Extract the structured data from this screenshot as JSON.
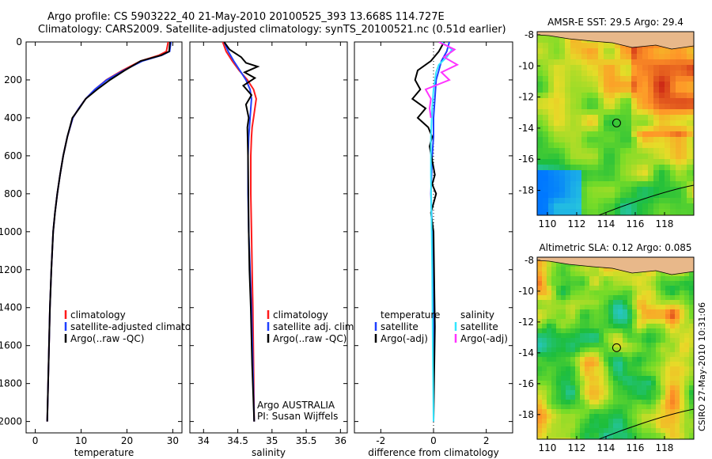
{
  "title": {
    "line1": "Argo profile: CS 5903222_40 21-May-2010 20100525_393 13.668S 114.727E",
    "line2": "Climatology: CARS2009. Satellite-adjusted climatology: synTS_20100521.nc (0.51d earlier)"
  },
  "stamp": "CSIRO 27-May-2010 10:31:06",
  "colors": {
    "climatology": "#ff1a1a",
    "satellite": "#1f3fff",
    "argo": "#000000",
    "argo_adj": "#ff33ff",
    "sat_salinity": "#33e6ff"
  },
  "chart_data": [
    {
      "type": "line",
      "id": "temperature",
      "xlabel": "temperature",
      "xlim": [
        -2,
        32
      ],
      "ylim": [
        2060,
        0
      ],
      "xticks": [
        0,
        10,
        20,
        30
      ],
      "yticks": [
        0,
        200,
        400,
        600,
        800,
        1000,
        1200,
        1400,
        1600,
        1800,
        2000
      ],
      "ylabels_shown": true,
      "legend": {
        "labels": [
          "climatology",
          "satellite-adjusted climatology",
          "Argo(..raw -QC)"
        ],
        "colors": [
          "#ff1a1a",
          "#1f3fff",
          "#000000"
        ]
      },
      "series": [
        {
          "name": "climatology",
          "color": "#ff1a1a",
          "x": [
            29.0,
            28.6,
            27.0,
            23.0,
            19.0,
            15.5,
            13.0,
            11.0,
            9.5,
            8.2,
            7.0,
            6.1,
            5.4,
            4.8,
            4.3,
            3.9,
            3.5,
            3.2,
            2.9,
            2.6
          ],
          "y": [
            0,
            50,
            70,
            100,
            150,
            200,
            250,
            300,
            350,
            400,
            500,
            600,
            700,
            800,
            900,
            1000,
            1200,
            1400,
            1700,
            2000
          ]
        },
        {
          "name": "satellite",
          "color": "#1f3fff",
          "x": [
            29.6,
            29.3,
            27.6,
            23.4,
            19.3,
            15.6,
            13.0,
            11.0,
            9.5,
            8.2,
            7.0,
            6.1,
            5.4,
            4.8,
            4.3,
            3.9,
            3.5,
            3.2,
            2.9,
            2.6
          ],
          "y": [
            0,
            50,
            70,
            100,
            150,
            200,
            250,
            300,
            350,
            400,
            500,
            600,
            700,
            800,
            900,
            1000,
            1200,
            1400,
            1700,
            2000
          ]
        },
        {
          "name": "Argo",
          "color": "#000000",
          "x": [
            29.4,
            29.2,
            27.5,
            23.0,
            19.5,
            16.3,
            13.5,
            11.0,
            9.6,
            8.1,
            7.0,
            6.1,
            5.4,
            4.8,
            4.3,
            3.9,
            3.5,
            3.2,
            2.9,
            2.6
          ],
          "y": [
            0,
            50,
            70,
            100,
            150,
            200,
            250,
            300,
            350,
            400,
            500,
            600,
            700,
            800,
            900,
            1000,
            1200,
            1400,
            1700,
            2000
          ]
        }
      ]
    },
    {
      "type": "line",
      "id": "salinity",
      "xlabel": "salinity",
      "xlim": [
        33.8,
        36.1
      ],
      "ylim": [
        2060,
        0
      ],
      "xticks": [
        34,
        34.5,
        35,
        35.5,
        36
      ],
      "yticks": [
        0,
        200,
        400,
        600,
        800,
        1000,
        1200,
        1400,
        1600,
        1800,
        2000
      ],
      "ylabels_shown": false,
      "legend": {
        "labels": [
          "climatology",
          "satellite adj. clim.",
          "Argo(..raw -QC)"
        ],
        "colors": [
          "#ff1a1a",
          "#1f3fff",
          "#000000"
        ]
      },
      "annotation": [
        "Argo AUSTRALIA",
        "PI: Susan Wijffels"
      ],
      "series": [
        {
          "name": "climatology",
          "color": "#ff1a1a",
          "x": [
            34.28,
            34.33,
            34.42,
            34.52,
            34.64,
            34.73,
            34.77,
            34.75,
            34.73,
            34.71,
            34.7,
            34.69,
            34.69,
            34.7,
            34.71,
            34.72,
            34.73,
            34.74
          ],
          "y": [
            0,
            50,
            100,
            150,
            200,
            250,
            300,
            350,
            400,
            450,
            500,
            600,
            800,
            1000,
            1200,
            1400,
            1700,
            2000
          ]
        },
        {
          "name": "satellite",
          "color": "#1f3fff",
          "x": [
            34.3,
            34.36,
            34.44,
            34.53,
            34.62,
            34.68,
            34.7,
            34.69,
            34.68,
            34.67,
            34.66,
            34.65,
            34.65,
            34.66,
            34.68,
            34.7,
            34.72,
            34.74
          ],
          "y": [
            0,
            50,
            100,
            150,
            200,
            250,
            300,
            350,
            400,
            450,
            500,
            600,
            800,
            1000,
            1200,
            1400,
            1700,
            2000
          ]
        },
        {
          "name": "Argo",
          "color": "#000000",
          "x": [
            34.3,
            34.38,
            34.55,
            34.62,
            34.79,
            34.6,
            34.75,
            34.58,
            34.7,
            34.62,
            34.66,
            34.64,
            34.65,
            34.66,
            34.67,
            34.69,
            34.71,
            34.74
          ],
          "y": [
            0,
            40,
            80,
            110,
            130,
            160,
            190,
            230,
            280,
            330,
            400,
            450,
            600,
            1000,
            1200,
            1400,
            1700,
            2000
          ]
        }
      ]
    },
    {
      "type": "line",
      "id": "difference",
      "xlabel": "difference from climatology",
      "xlim": [
        -3.0,
        3.0
      ],
      "ylim": [
        2060,
        0
      ],
      "xticks": [
        -2,
        0,
        2
      ],
      "yticks": [
        0,
        200,
        400,
        600,
        800,
        1000,
        1200,
        1400,
        1600,
        1800,
        2000
      ],
      "ylabels_shown": false,
      "zero_line": true,
      "legend_left": {
        "header": "temperature",
        "labels": [
          "satellite",
          "Argo(-adj)"
        ],
        "colors": [
          "#1f3fff",
          "#000000"
        ]
      },
      "legend_right": {
        "header": "salinity",
        "labels": [
          "satellite",
          "Argo(-adj)"
        ],
        "colors": [
          "#33e6ff",
          "#ff33ff"
        ]
      },
      "series": [
        {
          "name": "temperature satellite",
          "color": "#1f3fff",
          "x": [
            0.6,
            0.5,
            0.3,
            0.2,
            0.1,
            0.05,
            0.0,
            0.0,
            -0.05,
            -0.1,
            -0.05,
            0.0,
            0.0
          ],
          "y": [
            0,
            50,
            100,
            150,
            200,
            300,
            400,
            500,
            600,
            800,
            1000,
            1500,
            2000
          ]
        },
        {
          "name": "temperature Argo",
          "color": "#000000",
          "x": [
            0.4,
            0.2,
            -0.1,
            -0.6,
            -0.7,
            -0.5,
            -0.8,
            -0.3,
            -0.6,
            -0.2,
            -0.05,
            -0.15,
            0.05,
            -0.05,
            0.1,
            -0.1,
            0.0,
            0.05,
            0.0
          ],
          "y": [
            0,
            50,
            100,
            150,
            200,
            250,
            300,
            350,
            400,
            450,
            500,
            550,
            700,
            750,
            800,
            900,
            1000,
            1500,
            2000
          ]
        },
        {
          "name": "salinity satellite",
          "color": "#33e6ff",
          "x": [
            0.3,
            0.7,
            0.5,
            0.2,
            0.1,
            0.0,
            -0.05,
            -0.1,
            -0.1,
            -0.08,
            -0.05,
            -0.03,
            0.0
          ],
          "y": [
            0,
            40,
            80,
            120,
            160,
            250,
            350,
            500,
            700,
            900,
            1200,
            1600,
            2000
          ]
        },
        {
          "name": "salinity Argo",
          "color": "#ff33ff",
          "x": [
            0.2,
            0.8,
            0.4,
            0.9,
            0.3,
            0.6,
            -0.3,
            -0.1,
            -0.15,
            -0.1
          ],
          "y": [
            0,
            40,
            80,
            120,
            160,
            200,
            250,
            300,
            350,
            400
          ]
        }
      ]
    },
    {
      "type": "heatmap",
      "id": "sst-map",
      "title": "AMSR-E SST: 29.5  Argo: 29.4",
      "xlim": [
        109.3,
        120.0
      ],
      "ylim": [
        -19.6,
        -7.8
      ],
      "xticks": [
        110,
        112,
        114,
        116,
        118
      ],
      "yticks": [
        -8,
        -10,
        -12,
        -14,
        -16,
        -18
      ],
      "marker": {
        "lon": 114.727,
        "lat": -13.668
      }
    },
    {
      "type": "heatmap",
      "id": "sla-map",
      "title": "Altimetric SLA: 0.12  Argo: 0.085",
      "xlim": [
        109.3,
        120.0
      ],
      "ylim": [
        -19.6,
        -7.8
      ],
      "xticks": [
        110,
        112,
        114,
        116,
        118
      ],
      "yticks": [
        -8,
        -10,
        -12,
        -14,
        -16,
        -18
      ],
      "marker": {
        "lon": 114.727,
        "lat": -13.668
      }
    }
  ]
}
